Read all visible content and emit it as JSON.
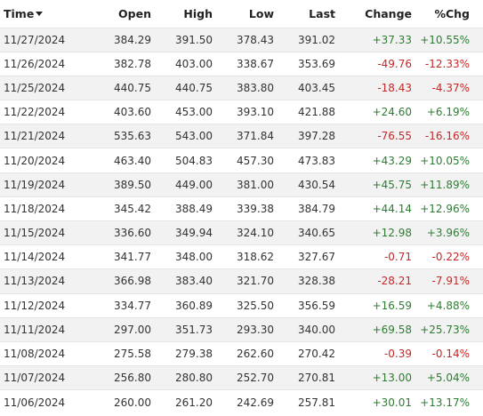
{
  "headers": {
    "time": "Time",
    "open": "Open",
    "high": "High",
    "low": "Low",
    "last": "Last",
    "change": "Change",
    "pct_chg": "%Chg"
  },
  "sort_icon": "caret-down-icon",
  "colors": {
    "positive": "#2e7d32",
    "negative": "#c62828",
    "row_stripe": "#f2f2f2"
  },
  "rows": [
    {
      "time": "11/27/2024",
      "open": "384.29",
      "high": "391.50",
      "low": "378.43",
      "last": "391.02",
      "change": "+37.33",
      "pct_chg": "+10.55%",
      "dir": "up"
    },
    {
      "time": "11/26/2024",
      "open": "382.78",
      "high": "403.00",
      "low": "338.67",
      "last": "353.69",
      "change": "-49.76",
      "pct_chg": "-12.33%",
      "dir": "down"
    },
    {
      "time": "11/25/2024",
      "open": "440.75",
      "high": "440.75",
      "low": "383.80",
      "last": "403.45",
      "change": "-18.43",
      "pct_chg": "-4.37%",
      "dir": "down"
    },
    {
      "time": "11/22/2024",
      "open": "403.60",
      "high": "453.00",
      "low": "393.10",
      "last": "421.88",
      "change": "+24.60",
      "pct_chg": "+6.19%",
      "dir": "up"
    },
    {
      "time": "11/21/2024",
      "open": "535.63",
      "high": "543.00",
      "low": "371.84",
      "last": "397.28",
      "change": "-76.55",
      "pct_chg": "-16.16%",
      "dir": "down"
    },
    {
      "time": "11/20/2024",
      "open": "463.40",
      "high": "504.83",
      "low": "457.30",
      "last": "473.83",
      "change": "+43.29",
      "pct_chg": "+10.05%",
      "dir": "up"
    },
    {
      "time": "11/19/2024",
      "open": "389.50",
      "high": "449.00",
      "low": "381.00",
      "last": "430.54",
      "change": "+45.75",
      "pct_chg": "+11.89%",
      "dir": "up"
    },
    {
      "time": "11/18/2024",
      "open": "345.42",
      "high": "388.49",
      "low": "339.38",
      "last": "384.79",
      "change": "+44.14",
      "pct_chg": "+12.96%",
      "dir": "up"
    },
    {
      "time": "11/15/2024",
      "open": "336.60",
      "high": "349.94",
      "low": "324.10",
      "last": "340.65",
      "change": "+12.98",
      "pct_chg": "+3.96%",
      "dir": "up"
    },
    {
      "time": "11/14/2024",
      "open": "341.77",
      "high": "348.00",
      "low": "318.62",
      "last": "327.67",
      "change": "-0.71",
      "pct_chg": "-0.22%",
      "dir": "down"
    },
    {
      "time": "11/13/2024",
      "open": "366.98",
      "high": "383.40",
      "low": "321.70",
      "last": "328.38",
      "change": "-28.21",
      "pct_chg": "-7.91%",
      "dir": "down"
    },
    {
      "time": "11/12/2024",
      "open": "334.77",
      "high": "360.89",
      "low": "325.50",
      "last": "356.59",
      "change": "+16.59",
      "pct_chg": "+4.88%",
      "dir": "up"
    },
    {
      "time": "11/11/2024",
      "open": "297.00",
      "high": "351.73",
      "low": "293.30",
      "last": "340.00",
      "change": "+69.58",
      "pct_chg": "+25.73%",
      "dir": "up"
    },
    {
      "time": "11/08/2024",
      "open": "275.58",
      "high": "279.38",
      "low": "262.60",
      "last": "270.42",
      "change": "-0.39",
      "pct_chg": "-0.14%",
      "dir": "down"
    },
    {
      "time": "11/07/2024",
      "open": "256.80",
      "high": "280.80",
      "low": "252.70",
      "last": "270.81",
      "change": "+13.00",
      "pct_chg": "+5.04%",
      "dir": "up"
    },
    {
      "time": "11/06/2024",
      "open": "260.00",
      "high": "261.20",
      "low": "242.69",
      "last": "257.81",
      "change": "+30.01",
      "pct_chg": "+13.17%",
      "dir": "up"
    }
  ]
}
